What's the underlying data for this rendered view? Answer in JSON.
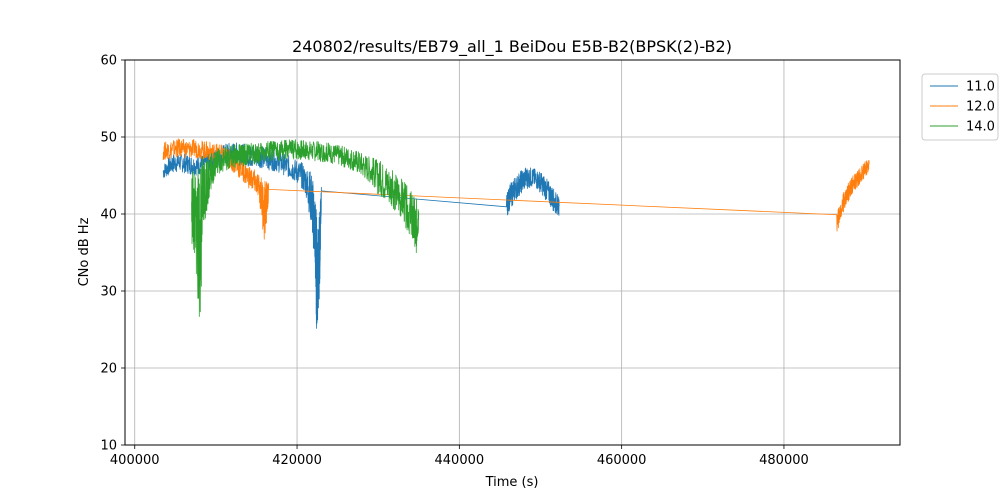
{
  "chart_data": {
    "type": "line",
    "title": "240802/results/EB79_all_1 BeiDou E5B-B2(BPSK(2)-B2)",
    "xlabel": "Time (s)",
    "ylabel": "CNo dB Hz",
    "xlim": [
      398800,
      494300
    ],
    "ylim": [
      10,
      60
    ],
    "xticks": [
      400000,
      420000,
      440000,
      460000,
      480000
    ],
    "xtick_labels": [
      "400000",
      "420000",
      "440000",
      "460000",
      "480000"
    ],
    "yticks": [
      10,
      20,
      30,
      40,
      50,
      60
    ],
    "ytick_labels": [
      "10",
      "20",
      "30",
      "40",
      "50",
      "60"
    ],
    "grid": true,
    "legend_position": "outside-top-right",
    "series": [
      {
        "name": "11.0",
        "color": "#1f77b4",
        "x": [
          403500,
          404500,
          405500,
          406500,
          407500,
          408500,
          409500,
          410500,
          411500,
          412500,
          413500,
          414500,
          415500,
          416500,
          417500,
          418500,
          419500,
          420500,
          421200,
          421800,
          422200,
          422400,
          422600,
          422800,
          423000,
          445800,
          446200,
          446800,
          447500,
          448200,
          449000,
          449800,
          450500,
          451200,
          451800,
          452300
        ],
        "y": [
          45.5,
          46.5,
          46.8,
          46.5,
          46.2,
          46.5,
          47.0,
          47.5,
          48.0,
          48.0,
          47.8,
          47.5,
          47.5,
          47.2,
          47.0,
          46.5,
          46.0,
          45.5,
          44.5,
          42.0,
          38.0,
          33.0,
          30.0,
          34.0,
          43.0,
          41.0,
          42.0,
          43.0,
          44.0,
          44.8,
          45.0,
          44.5,
          43.5,
          42.5,
          41.5,
          41.0
        ],
        "y_min": [
          44.5,
          45.2,
          45.5,
          45.2,
          45.0,
          45.2,
          45.8,
          46.2,
          46.5,
          46.5,
          46.3,
          46.0,
          46.0,
          45.7,
          45.5,
          45.0,
          44.3,
          43.5,
          42.0,
          38.0,
          33.0,
          24.5,
          26.5,
          30.0,
          41.0,
          39.5,
          40.5,
          41.5,
          42.5,
          43.2,
          43.5,
          43.0,
          42.0,
          41.0,
          40.0,
          39.8
        ],
        "y_max": [
          46.5,
          47.8,
          48.0,
          47.8,
          47.5,
          47.8,
          48.3,
          48.8,
          49.3,
          49.3,
          49.1,
          48.8,
          48.8,
          48.5,
          48.3,
          47.8,
          47.3,
          46.8,
          46.0,
          45.5,
          43.0,
          40.5,
          38.0,
          41.0,
          44.0,
          42.5,
          43.8,
          44.8,
          45.6,
          46.2,
          46.0,
          45.7,
          45.0,
          44.0,
          43.0,
          42.2
        ]
      },
      {
        "name": "12.0",
        "color": "#ff7f0e",
        "x": [
          403500,
          404500,
          405500,
          406500,
          407500,
          408500,
          409500,
          410500,
          411500,
          412500,
          413500,
          414500,
          415300,
          416000,
          416500,
          486500,
          487000,
          487500,
          488000,
          488500,
          489000,
          489500,
          490000,
          490500
        ],
        "y": [
          48.2,
          48.5,
          48.7,
          48.5,
          48.6,
          48.4,
          48.2,
          48.0,
          47.5,
          46.5,
          45.5,
          44.5,
          43.8,
          43.0,
          43.2,
          38.8,
          40.5,
          42.0,
          43.0,
          44.0,
          44.5,
          45.2,
          45.8,
          46.5
        ],
        "y_min": [
          47.0,
          47.2,
          47.4,
          47.2,
          47.3,
          47.1,
          46.9,
          46.7,
          46.0,
          45.0,
          44.0,
          42.8,
          42.0,
          36.0,
          41.5,
          37.5,
          39.2,
          40.8,
          41.8,
          42.8,
          43.4,
          44.1,
          44.7,
          45.5
        ],
        "y_max": [
          49.3,
          49.6,
          49.8,
          49.6,
          49.7,
          49.5,
          49.3,
          49.1,
          48.6,
          47.8,
          46.8,
          46.0,
          45.2,
          44.5,
          44.0,
          40.0,
          41.8,
          43.2,
          44.2,
          45.0,
          45.5,
          46.2,
          46.8,
          47.3
        ]
      },
      {
        "name": "14.0",
        "color": "#2ca02c",
        "x": [
          407000,
          407500,
          408000,
          408500,
          409000,
          409500,
          410000,
          411000,
          412000,
          413000,
          414000,
          415000,
          416000,
          417000,
          418000,
          419000,
          420000,
          421000,
          422000,
          423000,
          424000,
          425000,
          426000,
          427000,
          428000,
          429000,
          430000,
          431000,
          432000,
          433000,
          434000,
          434600,
          435000
        ],
        "y": [
          40.0,
          38.0,
          40.0,
          42.0,
          44.0,
          45.5,
          46.5,
          47.0,
          47.3,
          47.5,
          47.7,
          47.8,
          48.0,
          48.2,
          48.3,
          48.4,
          48.4,
          48.4,
          48.3,
          48.2,
          48.0,
          47.8,
          47.5,
          47.2,
          46.5,
          46.0,
          45.0,
          44.0,
          43.0,
          42.0,
          40.0,
          38.0,
          40.0
        ],
        "y_min": [
          36.0,
          33.0,
          25.0,
          38.0,
          41.0,
          43.5,
          44.8,
          45.5,
          45.9,
          46.1,
          46.3,
          46.4,
          46.6,
          46.8,
          46.9,
          47.0,
          47.0,
          47.0,
          46.9,
          46.8,
          46.6,
          46.4,
          46.0,
          45.6,
          44.8,
          44.0,
          42.5,
          41.5,
          40.5,
          39.0,
          37.0,
          33.8,
          38.0
        ],
        "y_max": [
          46.5,
          45.0,
          47.5,
          47.5,
          48.0,
          48.3,
          48.5,
          48.8,
          49.0,
          49.1,
          49.2,
          49.3,
          49.4,
          49.5,
          49.6,
          49.7,
          49.7,
          49.6,
          49.5,
          49.4,
          49.2,
          49.0,
          48.8,
          48.5,
          48.0,
          47.5,
          47.0,
          46.5,
          45.5,
          44.5,
          43.0,
          42.0,
          42.5
        ]
      }
    ]
  }
}
